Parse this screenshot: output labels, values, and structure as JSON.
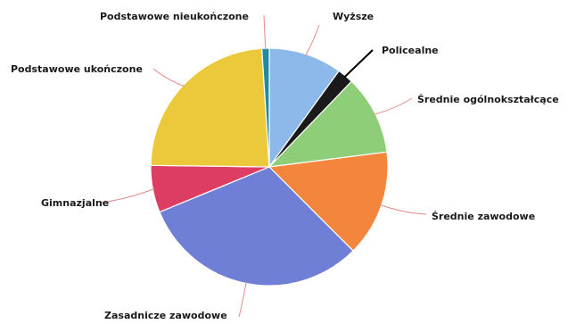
{
  "chart_data": {
    "type": "pie",
    "title": "",
    "start": "top",
    "direction": "clockwise",
    "slices": [
      {
        "label": "Wyższe",
        "value": 10.0,
        "color": "#8db9ea"
      },
      {
        "label": "Policealne",
        "value": 2.2,
        "color": "#1a1a1a"
      },
      {
        "label": "Średnie ogólnokształcące",
        "value": 10.8,
        "color": "#8fce78"
      },
      {
        "label": "Średnie zawodowe",
        "value": 14.5,
        "color": "#f3853d"
      },
      {
        "label": "Zasadnicze zawodowe",
        "value": 31.3,
        "color": "#6f7fd5"
      },
      {
        "label": "Gimnazjalne",
        "value": 6.4,
        "color": "#de3d63"
      },
      {
        "label": "Podstawowe ukończone",
        "value": 23.8,
        "color": "#ecc93a"
      },
      {
        "label": "Podstawowe nieukończone",
        "value": 1.0,
        "color": "#1e8aa6"
      }
    ]
  }
}
